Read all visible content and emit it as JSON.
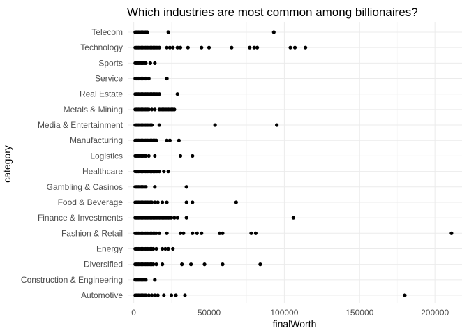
{
  "chart_data": {
    "type": "scatter",
    "title": "Which industries are most common among billionaires?",
    "xlabel": "finalWorth",
    "ylabel": "category",
    "xlim": [
      -4000,
      218000
    ],
    "x_ticks": [
      0,
      50000,
      100000,
      150000,
      200000
    ],
    "x_tick_labels": [
      "0",
      "50000",
      "100000",
      "150000",
      "200000"
    ],
    "grid": true,
    "legend": "none",
    "point_color": "#000000",
    "categories": [
      "Automotive",
      "Construction & Engineering",
      "Diversified",
      "Energy",
      "Fashion & Retail",
      "Finance & Investments",
      "Food & Beverage",
      "Gambling & Casinos",
      "Healthcare",
      "Logistics",
      "Manufacturing",
      "Media & Entertainment",
      "Metals & Mining",
      "Real Estate",
      "Service",
      "Sports",
      "Technology",
      "Telecom"
    ],
    "series": [
      {
        "category": "Automotive",
        "x": [
          1000,
          2000,
          3000,
          4000,
          5000,
          6000,
          7000,
          8000,
          10000,
          12000,
          14000,
          16000,
          20000,
          25000,
          28000,
          34000,
          180000
        ]
      },
      {
        "category": "Construction & Engineering",
        "x": [
          1000,
          2000,
          3000,
          4000,
          5000,
          6000,
          7000,
          8000,
          14000
        ]
      },
      {
        "category": "Diversified",
        "x": [
          1000,
          2000,
          3000,
          4000,
          5000,
          6000,
          7000,
          8000,
          9000,
          10000,
          11000,
          12000,
          13000,
          15000,
          19000,
          32000,
          38000,
          47000,
          59000,
          84000
        ]
      },
      {
        "category": "Energy",
        "x": [
          1000,
          2000,
          3000,
          4000,
          5000,
          6000,
          7000,
          8000,
          9000,
          10000,
          11000,
          12000,
          13000,
          15000,
          19000,
          21000,
          23000,
          26000
        ]
      },
      {
        "category": "Fashion & Retail",
        "x": [
          1000,
          2000,
          3000,
          4000,
          5000,
          6000,
          7000,
          8000,
          9000,
          10000,
          11000,
          12000,
          13000,
          14000,
          15000,
          17000,
          22000,
          31000,
          33000,
          39000,
          42000,
          45000,
          57000,
          59000,
          78000,
          81000,
          211000
        ]
      },
      {
        "category": "Finance & Investments",
        "x": [
          1000,
          2000,
          3000,
          4000,
          5000,
          6000,
          7000,
          8000,
          9000,
          10000,
          11000,
          12000,
          13000,
          14000,
          15000,
          16000,
          17000,
          18000,
          19000,
          20000,
          21000,
          22000,
          23000,
          24000,
          25000,
          27000,
          29000,
          35000,
          106000
        ]
      },
      {
        "category": "Food & Beverage",
        "x": [
          1000,
          2000,
          3000,
          4000,
          5000,
          6000,
          7000,
          8000,
          9000,
          10000,
          11000,
          12000,
          14000,
          16000,
          19000,
          22000,
          35000,
          39000,
          68000
        ]
      },
      {
        "category": "Gambling & Casinos",
        "x": [
          1000,
          2000,
          3000,
          4000,
          5000,
          6000,
          7000,
          8000,
          14000,
          35000
        ]
      },
      {
        "category": "Healthcare",
        "x": [
          1000,
          2000,
          3000,
          4000,
          5000,
          6000,
          7000,
          8000,
          9000,
          10000,
          11000,
          12000,
          13000,
          14000,
          15000,
          16000,
          17000,
          20000,
          23000
        ]
      },
      {
        "category": "Logistics",
        "x": [
          1000,
          2000,
          3000,
          4000,
          5000,
          6000,
          7000,
          8000,
          10000,
          14000,
          31000,
          39000
        ]
      },
      {
        "category": "Manufacturing",
        "x": [
          1000,
          2000,
          3000,
          4000,
          5000,
          6000,
          7000,
          8000,
          9000,
          10000,
          11000,
          12000,
          13000,
          14000,
          15000,
          22000,
          24000,
          30000
        ]
      },
      {
        "category": "Media & Entertainment",
        "x": [
          1000,
          2000,
          3000,
          4000,
          5000,
          6000,
          7000,
          8000,
          9000,
          10000,
          11000,
          12000,
          17000,
          54000,
          95000
        ]
      },
      {
        "category": "Metals & Mining",
        "x": [
          1000,
          2000,
          3000,
          4000,
          5000,
          6000,
          7000,
          8000,
          9000,
          10000,
          12000,
          14000,
          17000,
          18000,
          19000,
          20000,
          21000,
          22000,
          23000,
          24000,
          25000,
          26000,
          27000
        ]
      },
      {
        "category": "Real Estate",
        "x": [
          1000,
          2000,
          3000,
          4000,
          5000,
          6000,
          7000,
          8000,
          9000,
          10000,
          11000,
          12000,
          13000,
          14000,
          15000,
          16000,
          17000,
          29000
        ]
      },
      {
        "category": "Service",
        "x": [
          1000,
          2000,
          3000,
          4000,
          5000,
          6000,
          7000,
          8000,
          10000,
          22000
        ]
      },
      {
        "category": "Sports",
        "x": [
          1000,
          2000,
          3000,
          4000,
          5000,
          6000,
          7000,
          8000,
          11000,
          14000
        ]
      },
      {
        "category": "Technology",
        "x": [
          1000,
          2000,
          3000,
          4000,
          5000,
          6000,
          7000,
          8000,
          9000,
          10000,
          11000,
          12000,
          13000,
          14000,
          15000,
          16000,
          17000,
          22000,
          24000,
          26000,
          29000,
          31000,
          36000,
          45000,
          50000,
          65000,
          77000,
          80000,
          82000,
          104000,
          107000,
          114000
        ]
      },
      {
        "category": "Telecom",
        "x": [
          1000,
          2000,
          3000,
          4000,
          5000,
          6000,
          7000,
          8000,
          9000,
          23000,
          93000
        ]
      }
    ]
  }
}
